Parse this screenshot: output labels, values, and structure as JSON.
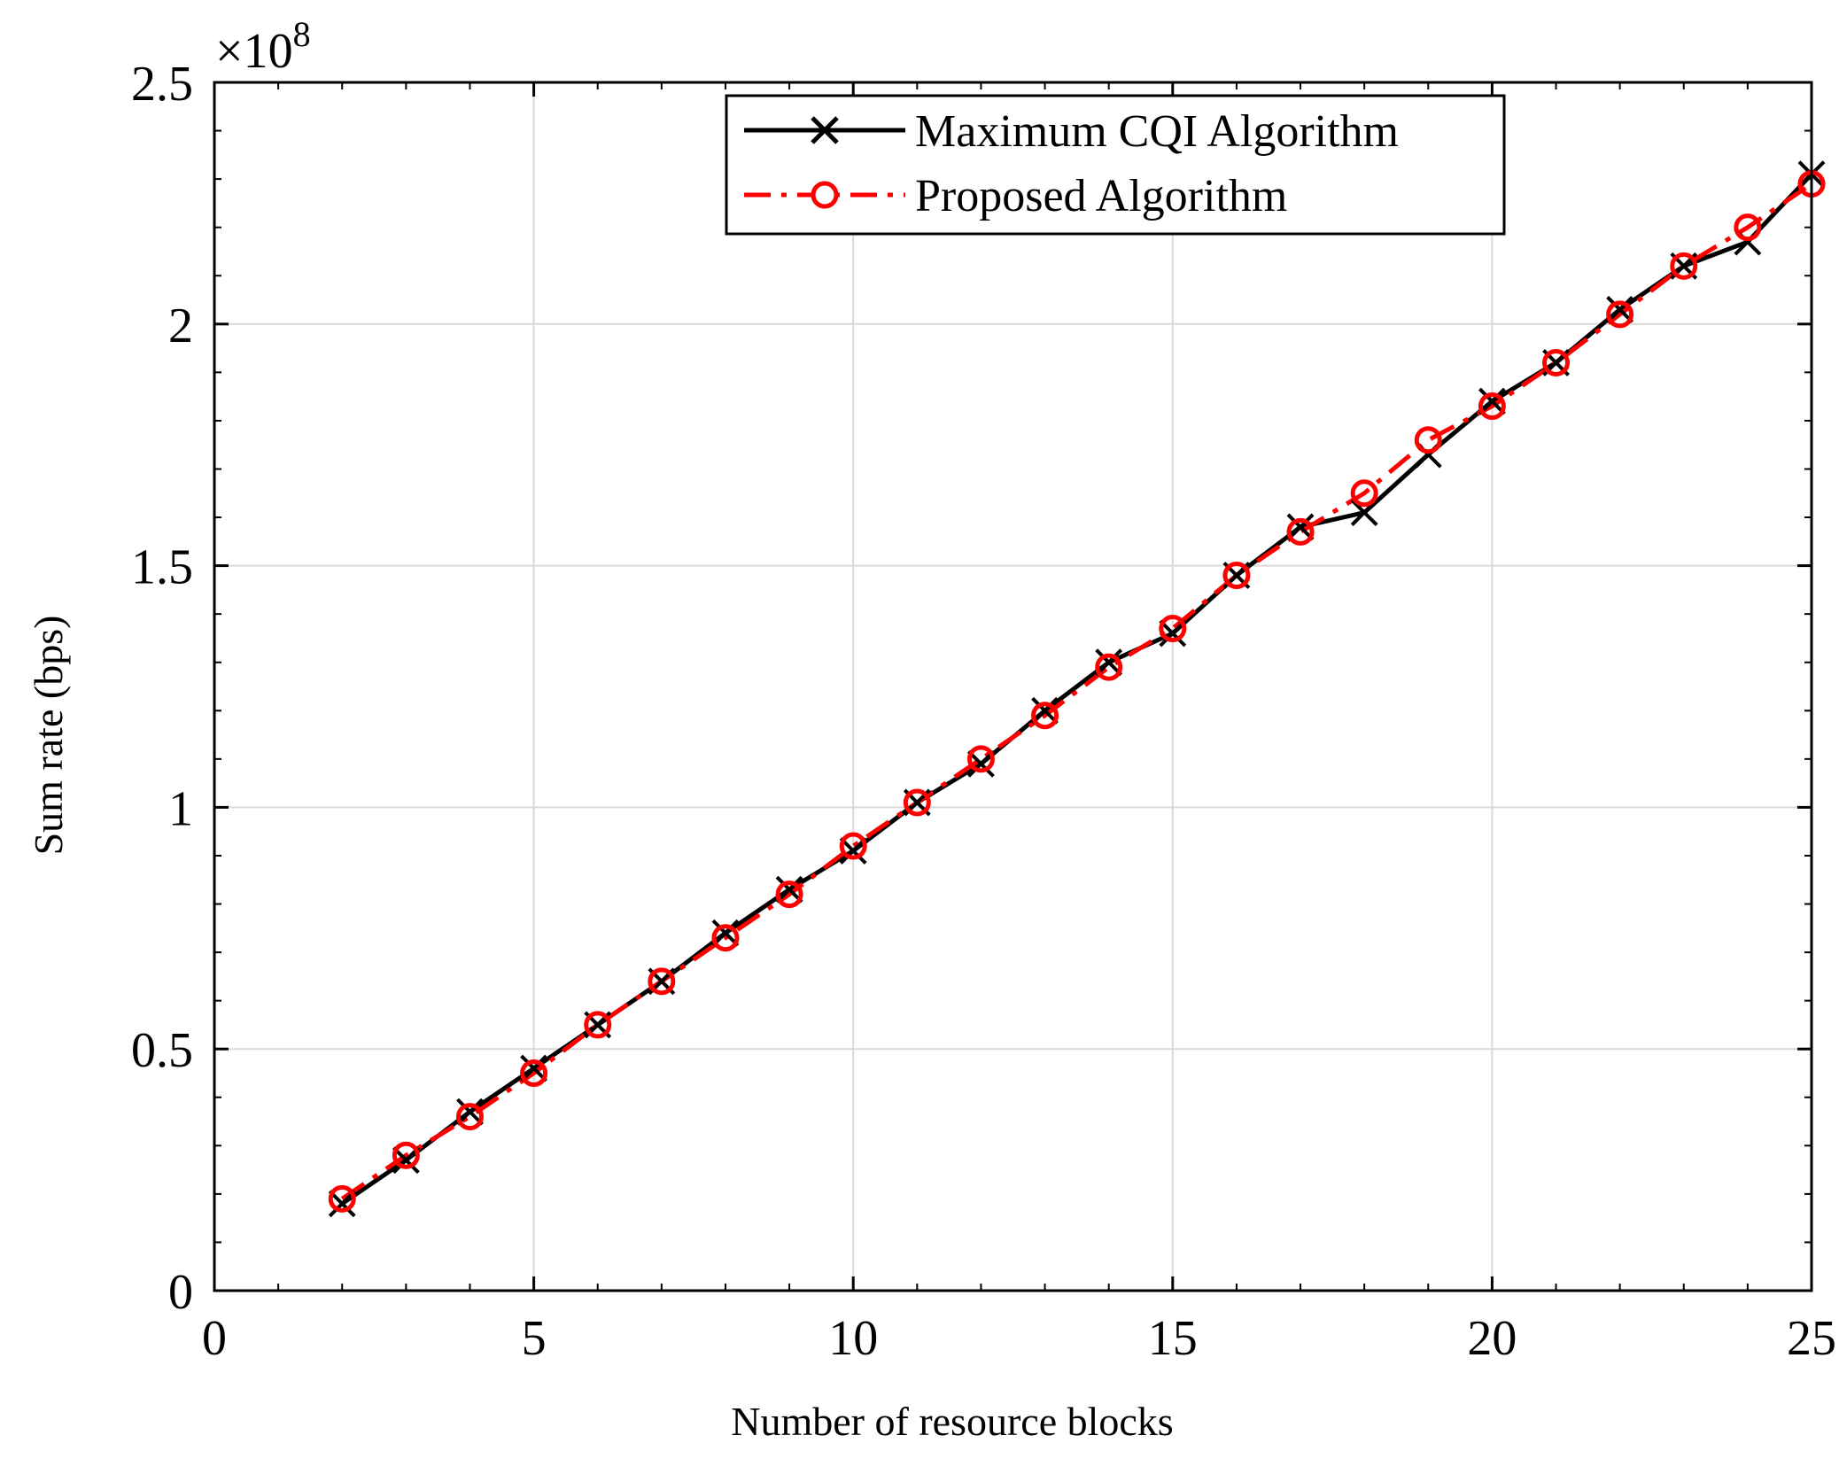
{
  "chart_data": {
    "type": "line",
    "title": "",
    "xlabel": "Number of resource blocks",
    "ylabel": "Sum rate (bps)",
    "xlim": [
      0,
      25
    ],
    "ylim": [
      0,
      2.5
    ],
    "y_multiplier": {
      "base": "×10",
      "exponent": "8"
    },
    "xticks": [
      0,
      5,
      10,
      15,
      20,
      25
    ],
    "xtick_labels": [
      "0",
      "5",
      "10",
      "15",
      "20",
      "25"
    ],
    "yticks": [
      0,
      0.5,
      1,
      1.5,
      2,
      2.5
    ],
    "ytick_labels": [
      "0",
      "0.5",
      "1",
      "1.5",
      "2",
      "2.5"
    ],
    "grid": true,
    "legend_position": "top-center",
    "x": [
      2,
      3,
      4,
      5,
      6,
      7,
      8,
      9,
      10,
      11,
      12,
      13,
      14,
      15,
      16,
      17,
      18,
      19,
      20,
      21,
      22,
      23,
      24,
      25
    ],
    "series": [
      {
        "name": "Maximum CQI Algorithm",
        "color": "#000000",
        "line_style": "solid",
        "marker": "x",
        "values": [
          0.18,
          0.27,
          0.37,
          0.46,
          0.55,
          0.64,
          0.74,
          0.83,
          0.91,
          1.01,
          1.09,
          1.2,
          1.3,
          1.36,
          1.48,
          1.58,
          1.61,
          1.73,
          1.84,
          1.92,
          2.03,
          2.12,
          2.17,
          2.31
        ]
      },
      {
        "name": "Proposed Algorithm",
        "color": "#ff0000",
        "line_style": "dashdot",
        "marker": "o",
        "values": [
          0.19,
          0.28,
          0.36,
          0.45,
          0.55,
          0.64,
          0.73,
          0.82,
          0.92,
          1.01,
          1.1,
          1.19,
          1.29,
          1.37,
          1.48,
          1.57,
          1.65,
          1.76,
          1.83,
          1.92,
          2.02,
          2.12,
          2.2,
          2.29
        ]
      }
    ]
  }
}
